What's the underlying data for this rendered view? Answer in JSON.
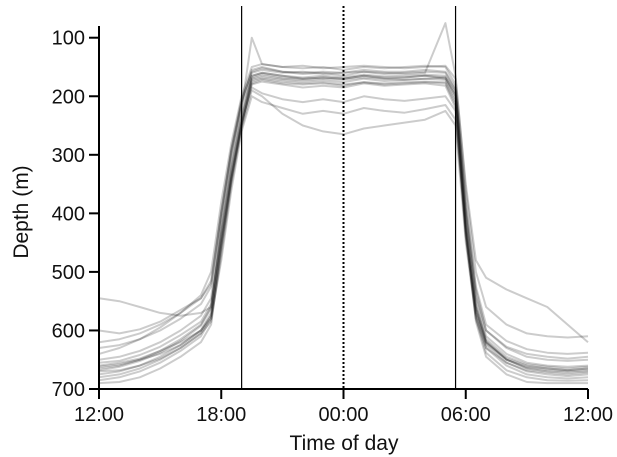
{
  "chart_data": {
    "type": "line",
    "title": "",
    "xlabel": "Time of day",
    "ylabel": "Depth (m)",
    "x_unit": "hours since 12:00",
    "xlim": [
      0,
      24
    ],
    "ylim": [
      700,
      80
    ],
    "y_inverted": true,
    "grid": false,
    "legend": "none",
    "x_ticks": [
      {
        "value": 0,
        "label": "12:00"
      },
      {
        "value": 6,
        "label": "18:00"
      },
      {
        "value": 12,
        "label": "00:00"
      },
      {
        "value": 18,
        "label": "06:00"
      },
      {
        "value": 24,
        "label": "12:00"
      }
    ],
    "y_ticks": [
      {
        "value": 100,
        "label": "100"
      },
      {
        "value": 200,
        "label": "200"
      },
      {
        "value": 300,
        "label": "300"
      },
      {
        "value": 400,
        "label": "400"
      },
      {
        "value": 500,
        "label": "500"
      },
      {
        "value": 600,
        "label": "600"
      },
      {
        "value": 700,
        "label": "700"
      }
    ],
    "reference_lines": [
      {
        "x": 7.0,
        "style": "solid"
      },
      {
        "x": 12.0,
        "style": "dotted"
      },
      {
        "x": 17.5,
        "style": "solid"
      }
    ],
    "line_color": "#000000",
    "line_opacity": 0.2,
    "series": [
      {
        "x": [
          0,
          1,
          2,
          3,
          4,
          5,
          5.5,
          6,
          6.5,
          7,
          7.5,
          8,
          9,
          10,
          11,
          12,
          13,
          14,
          15,
          16,
          17,
          17.5,
          18,
          18.5,
          19,
          20,
          21,
          22,
          23,
          24
        ],
        "y": [
          665,
          660,
          650,
          635,
          615,
          590,
          560,
          430,
          320,
          230,
          165,
          160,
          165,
          170,
          168,
          170,
          165,
          170,
          168,
          165,
          170,
          200,
          420,
          560,
          620,
          650,
          665,
          670,
          672,
          670
        ]
      },
      {
        "x": [
          0,
          1,
          2,
          3,
          4,
          5,
          5.5,
          6,
          6.5,
          7,
          7.5,
          8,
          9,
          10,
          11,
          12,
          13,
          14,
          15,
          16,
          17,
          17.5,
          18,
          18.5,
          19,
          20,
          21,
          22,
          23,
          24
        ],
        "y": [
          650,
          645,
          635,
          620,
          600,
          575,
          545,
          410,
          300,
          210,
          155,
          150,
          158,
          162,
          160,
          165,
          158,
          162,
          160,
          158,
          160,
          190,
          400,
          545,
          610,
          640,
          655,
          660,
          662,
          660
        ]
      },
      {
        "x": [
          0,
          1,
          2,
          3,
          4,
          5,
          5.5,
          6,
          6.5,
          7,
          7.5,
          8,
          9,
          10,
          11,
          12,
          13,
          14,
          15,
          16,
          17,
          17.5,
          18,
          18.5,
          19,
          20,
          21,
          22,
          23,
          24
        ],
        "y": [
          680,
          675,
          665,
          650,
          630,
          605,
          575,
          450,
          340,
          250,
          180,
          175,
          180,
          185,
          182,
          185,
          178,
          182,
          180,
          178,
          182,
          220,
          440,
          575,
          630,
          660,
          675,
          680,
          682,
          680
        ]
      },
      {
        "x": [
          0,
          1,
          2,
          3,
          4,
          5,
          5.5,
          6,
          6.5,
          7,
          7.5,
          8,
          9,
          10,
          11,
          12,
          13,
          14,
          15,
          16,
          17,
          17.5,
          18,
          18.5,
          19,
          20,
          21,
          22,
          23,
          24
        ],
        "y": [
          640,
          630,
          615,
          595,
          570,
          540,
          500,
          380,
          280,
          200,
          150,
          145,
          150,
          152,
          150,
          155,
          150,
          152,
          150,
          148,
          150,
          180,
          380,
          530,
          600,
          630,
          645,
          650,
          652,
          650
        ]
      },
      {
        "x": [
          0,
          1,
          2,
          3,
          4,
          5,
          5.5,
          6,
          6.5,
          7,
          7.5,
          8,
          9,
          10,
          11,
          12,
          13,
          14,
          15,
          16,
          17,
          17.5,
          18,
          18.5,
          19,
          20,
          21,
          22,
          23,
          24
        ],
        "y": [
          660,
          655,
          648,
          635,
          620,
          600,
          580,
          480,
          360,
          260,
          200,
          210,
          220,
          230,
          225,
          230,
          220,
          225,
          228,
          222,
          215,
          240,
          430,
          565,
          620,
          648,
          660,
          665,
          668,
          665
        ]
      },
      {
        "x": [
          0,
          1,
          2,
          3,
          4,
          5,
          5.5,
          6,
          6.5,
          7,
          7.5,
          8,
          9,
          10,
          11,
          12,
          13,
          14,
          15,
          16,
          17,
          17.5,
          18,
          18.5,
          19,
          20,
          21,
          22,
          23,
          24
        ],
        "y": [
          670,
          668,
          660,
          648,
          630,
          605,
          585,
          470,
          350,
          255,
          190,
          200,
          230,
          250,
          260,
          265,
          255,
          250,
          245,
          240,
          225,
          250,
          450,
          580,
          630,
          655,
          668,
          672,
          675,
          672
        ]
      },
      {
        "x": [
          0,
          1,
          2,
          3,
          4,
          5,
          5.5,
          6,
          6.5,
          7,
          7.5,
          8,
          9,
          10,
          11,
          12,
          13,
          14,
          15,
          16,
          17,
          17.5,
          18,
          18.5,
          19,
          20,
          21,
          22,
          23,
          24
        ],
        "y": [
          545,
          550,
          560,
          570,
          575,
          570,
          560,
          420,
          310,
          220,
          100,
          145,
          150,
          148,
          152,
          150,
          148,
          150,
          152,
          150,
          148,
          170,
          350,
          480,
          510,
          530,
          545,
          560,
          590,
          620
        ]
      },
      {
        "x": [
          0,
          1,
          2,
          3,
          4,
          5,
          5.5,
          6,
          6.5,
          7,
          7.5,
          8,
          9,
          10,
          11,
          12,
          13,
          14,
          15,
          16,
          17,
          17.5,
          18,
          18.5,
          19,
          20,
          21,
          22,
          23,
          24
        ],
        "y": [
          600,
          605,
          598,
          585,
          565,
          545,
          520,
          400,
          290,
          205,
          160,
          155,
          160,
          158,
          162,
          160,
          158,
          160,
          162,
          160,
          75,
          165,
          360,
          500,
          560,
          590,
          605,
          610,
          612,
          610
        ]
      },
      {
        "x": [
          0,
          1,
          2,
          3,
          4,
          5,
          5.5,
          6,
          6.5,
          7,
          7.5,
          8,
          9,
          10,
          11,
          12,
          13,
          14,
          15,
          16,
          17,
          17.5,
          18,
          18.5,
          19,
          20,
          21,
          22,
          23,
          24
        ],
        "y": [
          690,
          688,
          680,
          665,
          645,
          620,
          590,
          460,
          345,
          250,
          175,
          170,
          175,
          178,
          176,
          180,
          176,
          178,
          176,
          175,
          176,
          210,
          430,
          585,
          645,
          675,
          688,
          690,
          690,
          690
        ]
      },
      {
        "x": [
          0,
          1,
          2,
          3,
          4,
          5,
          5.5,
          6,
          6.5,
          7,
          7.5,
          8,
          9,
          10,
          11,
          12,
          13,
          14,
          15,
          16,
          17,
          17.5,
          18,
          18.5,
          19,
          20,
          21,
          22,
          23,
          24
        ],
        "y": [
          655,
          652,
          642,
          628,
          608,
          585,
          555,
          440,
          330,
          240,
          170,
          165,
          170,
          172,
          170,
          172,
          168,
          170,
          172,
          170,
          168,
          195,
          410,
          555,
          615,
          645,
          658,
          662,
          665,
          662
        ]
      },
      {
        "x": [
          0,
          1,
          2,
          3,
          4,
          5,
          5.5,
          6,
          6.5,
          7,
          7.5,
          8,
          9,
          10,
          11,
          12,
          13,
          14,
          15,
          16,
          17,
          17.5,
          18,
          18.5,
          19,
          20,
          21,
          22,
          23,
          24
        ],
        "y": [
          675,
          670,
          660,
          645,
          625,
          600,
          570,
          445,
          335,
          245,
          172,
          168,
          172,
          175,
          173,
          176,
          170,
          174,
          172,
          170,
          172,
          205,
          425,
          570,
          625,
          655,
          670,
          675,
          678,
          675
        ]
      },
      {
        "x": [
          0,
          1,
          2,
          3,
          4,
          5,
          5.5,
          6,
          6.5,
          7,
          7.5,
          8,
          9,
          10,
          11,
          12,
          13,
          14,
          15,
          16,
          17,
          17.5,
          18,
          18.5,
          19,
          20,
          21,
          22,
          23,
          24
        ],
        "y": [
          630,
          625,
          615,
          600,
          580,
          555,
          525,
          400,
          295,
          215,
          165,
          160,
          165,
          168,
          165,
          168,
          163,
          166,
          165,
          163,
          165,
          190,
          395,
          540,
          600,
          628,
          640,
          645,
          648,
          645
        ]
      },
      {
        "x": [
          0,
          1,
          2,
          3,
          4,
          5,
          5.5,
          6,
          6.5,
          7,
          7.5,
          8,
          9,
          10,
          11,
          12,
          13,
          14,
          15,
          16,
          17,
          17.5,
          18,
          18.5,
          19,
          20,
          21,
          22,
          23,
          24
        ],
        "y": [
          668,
          662,
          652,
          638,
          618,
          592,
          562,
          435,
          325,
          235,
          168,
          162,
          168,
          170,
          168,
          170,
          165,
          168,
          168,
          165,
          168,
          198,
          418,
          560,
          618,
          650,
          664,
          668,
          670,
          668
        ]
      },
      {
        "x": [
          0,
          1,
          2,
          3,
          4,
          5,
          5.5,
          6,
          6.5,
          7,
          7.5,
          8,
          9,
          10,
          11,
          12,
          13,
          14,
          15,
          16,
          17,
          17.5,
          18,
          18.5,
          19,
          20,
          21,
          22,
          23,
          24
        ],
        "y": [
          662,
          658,
          650,
          640,
          625,
          600,
          575,
          455,
          340,
          245,
          185,
          195,
          205,
          210,
          205,
          210,
          200,
          205,
          208,
          204,
          200,
          225,
          440,
          570,
          622,
          650,
          662,
          665,
          668,
          665
        ]
      },
      {
        "x": [
          0,
          1,
          2,
          3,
          4,
          5,
          5.5,
          6,
          6.5,
          7,
          7.5,
          8,
          9,
          10,
          11,
          12,
          13,
          14,
          15,
          16,
          17,
          17.5,
          18,
          18.5,
          19,
          20,
          21,
          22,
          23,
          24
        ],
        "y": [
          685,
          680,
          670,
          655,
          635,
          610,
          580,
          455,
          340,
          248,
          178,
          172,
          178,
          180,
          178,
          182,
          176,
          180,
          178,
          176,
          178,
          215,
          435,
          580,
          638,
          668,
          680,
          685,
          686,
          685
        ]
      },
      {
        "x": [
          0,
          1,
          2,
          3,
          4,
          5,
          5.5,
          6,
          6.5,
          7,
          7.5,
          8,
          9,
          10,
          11,
          12,
          13,
          14,
          15,
          16,
          17,
          17.5,
          18,
          18.5,
          19,
          20,
          21,
          22,
          23,
          24
        ],
        "y": [
          620,
          615,
          605,
          590,
          570,
          545,
          515,
          395,
          290,
          210,
          158,
          152,
          158,
          160,
          158,
          160,
          155,
          158,
          158,
          155,
          158,
          185,
          390,
          525,
          590,
          618,
          632,
          638,
          640,
          638
        ]
      }
    ]
  }
}
